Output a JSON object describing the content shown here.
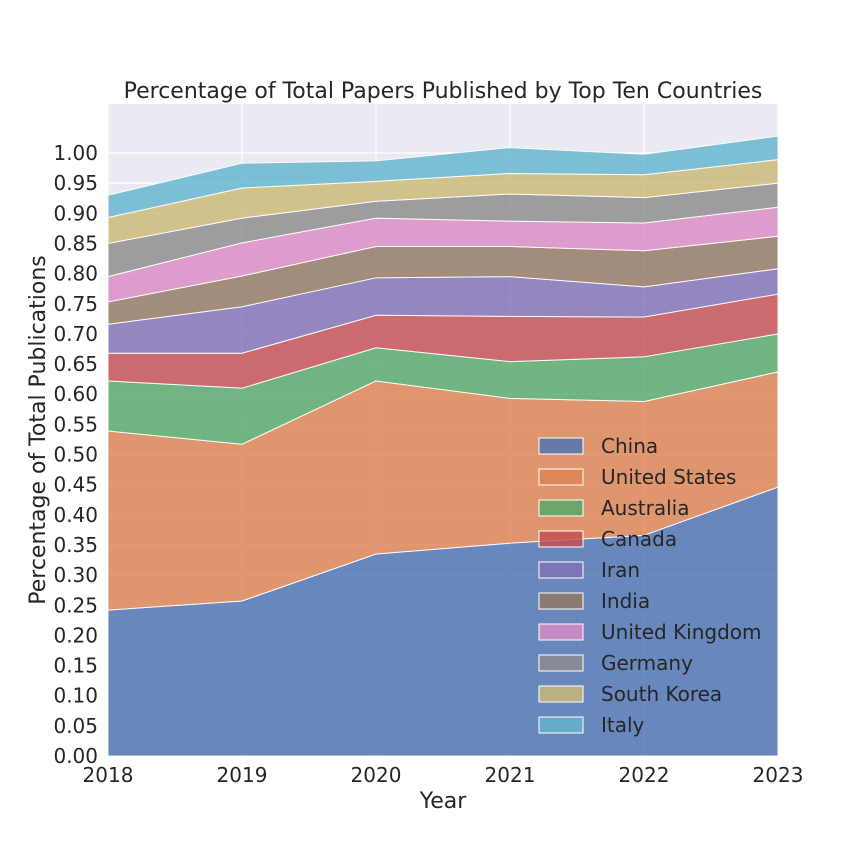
{
  "chart_data": {
    "type": "area",
    "stacked": true,
    "title": "Percentage of Total Papers Published by Top Ten Countries",
    "xlabel": "Year",
    "ylabel": "Percentage of Total Publications",
    "x": [
      2018,
      2019,
      2020,
      2021,
      2022,
      2023
    ],
    "xlim": [
      2018,
      2023
    ],
    "ylim": [
      0,
      1.0
    ],
    "yticks": [
      "0.00",
      "0.05",
      "0.10",
      "0.15",
      "0.20",
      "0.25",
      "0.30",
      "0.35",
      "0.40",
      "0.45",
      "0.50",
      "0.55",
      "0.60",
      "0.65",
      "0.70",
      "0.75",
      "0.80",
      "0.85",
      "0.90",
      "0.95",
      "1.00"
    ],
    "grid": true,
    "legend_position": "lower-right",
    "series": [
      {
        "name": "China",
        "color": "#4C72B0",
        "values": [
          0.242,
          0.257,
          0.335,
          0.353,
          0.366,
          0.446
        ]
      },
      {
        "name": "United States",
        "color": "#DD8452",
        "values": [
          0.297,
          0.26,
          0.287,
          0.24,
          0.222,
          0.191
        ]
      },
      {
        "name": "Australia",
        "color": "#55A868",
        "values": [
          0.083,
          0.093,
          0.055,
          0.061,
          0.074,
          0.063
        ]
      },
      {
        "name": "Canada",
        "color": "#C44E52",
        "values": [
          0.046,
          0.058,
          0.054,
          0.075,
          0.066,
          0.066
        ]
      },
      {
        "name": "Iran",
        "color": "#8172B3",
        "values": [
          0.048,
          0.077,
          0.062,
          0.066,
          0.05,
          0.042
        ]
      },
      {
        "name": "India",
        "color": "#937860",
        "values": [
          0.037,
          0.051,
          0.052,
          0.05,
          0.06,
          0.054
        ]
      },
      {
        "name": "United Kingdom",
        "color": "#DA8BC3",
        "values": [
          0.042,
          0.055,
          0.047,
          0.042,
          0.046,
          0.048
        ]
      },
      {
        "name": "Germany",
        "color": "#8C8C8C",
        "values": [
          0.055,
          0.041,
          0.028,
          0.045,
          0.042,
          0.04
        ]
      },
      {
        "name": "South Korea",
        "color": "#CCB974",
        "values": [
          0.043,
          0.05,
          0.033,
          0.034,
          0.038,
          0.039
        ]
      },
      {
        "name": "Italy",
        "color": "#64B5CD",
        "values": [
          0.037,
          0.041,
          0.034,
          0.043,
          0.034,
          0.039
        ]
      }
    ]
  }
}
